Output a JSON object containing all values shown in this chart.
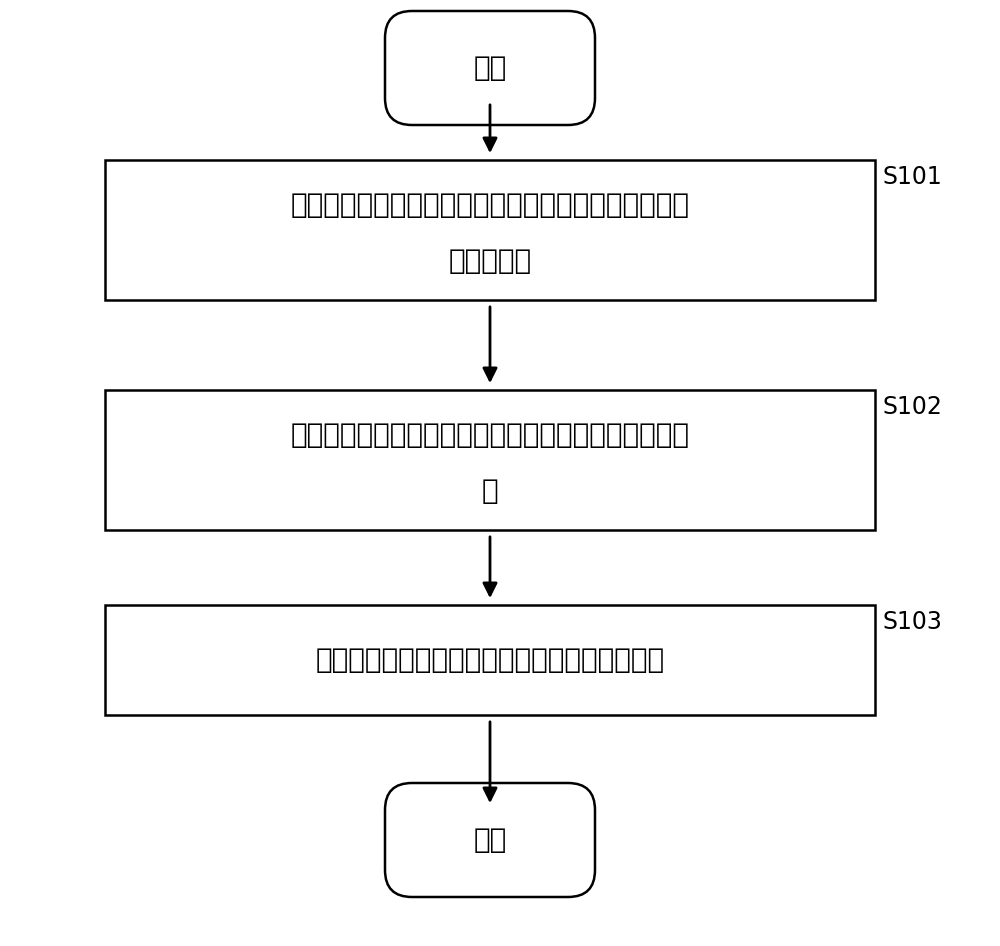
{
  "bg_color": "#ffffff",
  "border_color": "#000000",
  "text_color": "#000000",
  "arrow_color": "#000000",
  "start_end_label": [
    "开始",
    "结束"
  ],
  "steps": [
    {
      "label_line1": "获取量子点纯化废液；其中，所述量子点纯化废液中包",
      "label_line2": "括烷烃和醇",
      "tag": "S101"
    },
    {
      "label_line1": "将所述量子点纯化废液进行蒸馏，得到烷烃和醇的混合",
      "label_line2": "液",
      "tag": "S102"
    },
    {
      "label_line1": "将待纯化的量子点放置在所述混合液中进行纯化",
      "label_line2": "",
      "tag": "S103"
    }
  ],
  "font_size_main": 20,
  "font_size_tag": 17
}
